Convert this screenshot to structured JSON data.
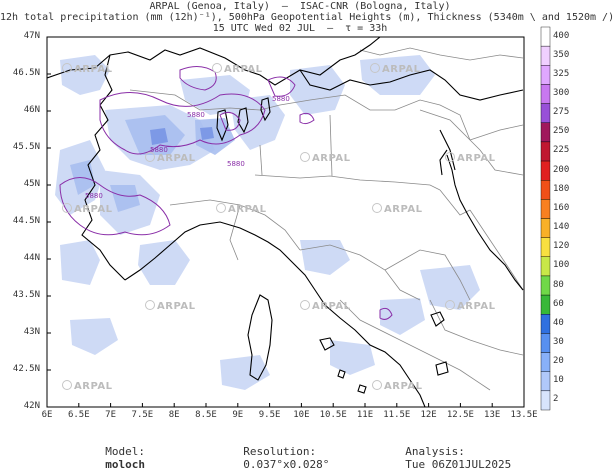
{
  "header": {
    "line1": "ARPAL (Genoa, Italy)  —  ISAC-CNR (Bologna, Italy)",
    "line2": "12h total precipitation (mm (12h)⁻¹), 500hPa Geopotential Heights (m), Thickness (5340m \\ and 1520m /)",
    "line3": "15 UTC Wed 02 JUL  —  τ = 33h"
  },
  "axes": {
    "y_labels": [
      "47N",
      "46.5N",
      "46N",
      "45.5N",
      "45N",
      "44.5N",
      "44N",
      "43.5N",
      "43N",
      "42.5N",
      "42N"
    ],
    "x_labels": [
      "6E",
      "6.5E",
      "7E",
      "7.5E",
      "8E",
      "8.5E",
      "9E",
      "9.5E",
      "10E",
      "10.5E",
      "11E",
      "11.5E",
      "12E",
      "12.5E",
      "13E",
      "13.5E"
    ]
  },
  "colorbar": {
    "levels": [
      "400",
      "350",
      "325",
      "300",
      "275",
      "250",
      "225",
      "200",
      "180",
      "160",
      "140",
      "120",
      "100",
      "80",
      "60",
      "40",
      "30",
      "20",
      "10",
      "2"
    ],
    "colors": [
      "#ffffff",
      "#f0d0ff",
      "#e0a8ff",
      "#c878f0",
      "#9850d8",
      "#a0185c",
      "#c01830",
      "#e02020",
      "#f05018",
      "#f88020",
      "#f8b028",
      "#f8e040",
      "#c8e848",
      "#70d848",
      "#38b838",
      "#3070e0",
      "#5890f0",
      "#88b0f8",
      "#b0c8fa",
      "#d8e4fc"
    ]
  },
  "contour_labels": [
    "5880",
    "5880",
    "5880",
    "5880",
    "5880"
  ],
  "watermarks": [
    "ARPAL",
    "ARPAL",
    "ARPAL",
    "ARPAL",
    "ARPAL",
    "ARPAL",
    "ARPAL",
    "ARPAL",
    "ARPAL",
    "ARPAL",
    "ARPAL",
    "ARPAL",
    "ARPAL",
    "ARPAL"
  ],
  "footer": {
    "model_label": "Model:",
    "model_value": "moloch",
    "resolution_label": "Resolution:",
    "resolution_value": "0.037°x0.028°",
    "analysis_label": "Analysis:",
    "analysis_value": "Tue 06Z01JUL2025"
  }
}
